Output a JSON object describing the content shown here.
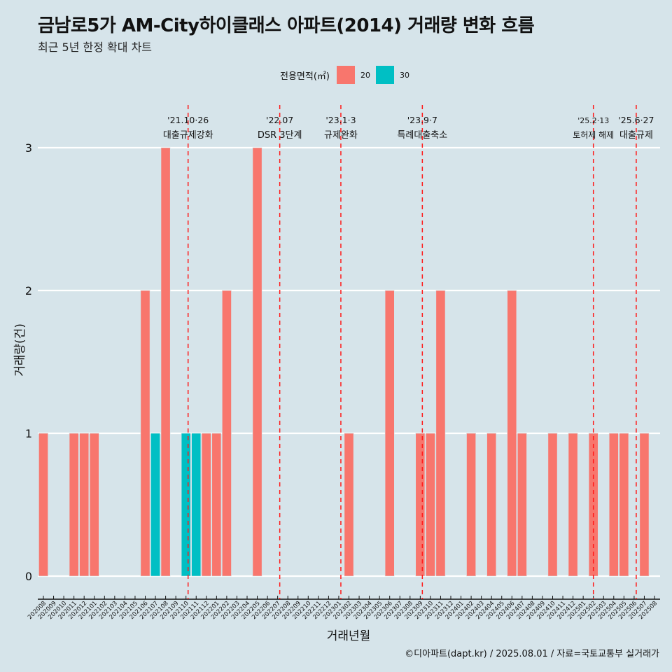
{
  "title": "금남로5가 AM-City하이클래스 아파트(2014) 거래량 변화 흐름",
  "subtitle": "최근 5년 한정 확대 차트",
  "caption": "©디아파트(dapt.kr) / 2025.08.01 / 자료=국토교통부 실거래가",
  "legend": {
    "title": "전용면적(㎡)",
    "items": [
      {
        "label": "20",
        "color": "#f8766d"
      },
      {
        "label": "30",
        "color": "#00bfc4"
      }
    ]
  },
  "chart_data": {
    "type": "bar",
    "stacked": true,
    "xlabel": "거래년월",
    "ylabel": "거래량(건)",
    "ylim": [
      0,
      3
    ],
    "yticks": [
      0,
      1,
      2,
      3
    ],
    "grid": true,
    "legend_position": "top",
    "categories": [
      "202008",
      "202009",
      "202010",
      "202011",
      "202012",
      "202101",
      "202102",
      "202103",
      "202104",
      "202105",
      "202106",
      "202107",
      "202108",
      "202109",
      "202110",
      "202111",
      "202112",
      "202201",
      "202202",
      "202203",
      "202204",
      "202205",
      "202206",
      "202207",
      "202208",
      "202209",
      "202210",
      "202211",
      "202212",
      "202301",
      "202302",
      "202303",
      "202304",
      "202305",
      "202306",
      "202307",
      "202308",
      "202309",
      "202310",
      "202311",
      "202312",
      "202401",
      "202402",
      "202403",
      "202404",
      "202405",
      "202406",
      "202407",
      "202408",
      "202409",
      "202410",
      "202411",
      "202412",
      "202501",
      "202502",
      "202503",
      "202504",
      "202505",
      "202506",
      "202507",
      "202508"
    ],
    "series": [
      {
        "name": "20",
        "color": "#f8766d",
        "values": [
          1,
          0,
          0,
          1,
          1,
          1,
          0,
          0,
          0,
          0,
          2,
          0,
          3,
          0,
          0,
          0,
          1,
          1,
          2,
          0,
          0,
          3,
          0,
          0,
          0,
          0,
          0,
          0,
          0,
          0,
          1,
          0,
          0,
          0,
          2,
          0,
          0,
          1,
          1,
          2,
          0,
          0,
          1,
          0,
          1,
          0,
          2,
          1,
          0,
          0,
          1,
          0,
          1,
          0,
          1,
          0,
          1,
          1,
          0,
          1,
          0
        ]
      },
      {
        "name": "30",
        "color": "#00bfc4",
        "values": [
          0,
          0,
          0,
          0,
          0,
          0,
          0,
          0,
          0,
          0,
          0,
          1,
          0,
          0,
          1,
          1,
          0,
          0,
          0,
          0,
          0,
          0,
          0,
          0,
          0,
          0,
          0,
          0,
          0,
          0,
          0,
          0,
          0,
          0,
          0,
          0,
          0,
          0,
          0,
          0,
          0,
          0,
          0,
          0,
          0,
          0,
          0,
          0,
          0,
          0,
          0,
          0,
          0,
          0,
          0,
          0,
          0,
          0,
          0,
          0,
          0
        ]
      }
    ],
    "annotations": [
      {
        "x": "202110",
        "line1": "'21.10·26",
        "line2": "대출규제강화"
      },
      {
        "x": "202207",
        "line1": "'22.07",
        "line2": "DSR 3단계"
      },
      {
        "x": "202301",
        "line1": "'23.1·3",
        "line2": "규제완화"
      },
      {
        "x": "202309",
        "line1": "'23.9·7",
        "line2": "특례대출축소"
      },
      {
        "x": "202502",
        "line1": "'25.2·13",
        "line2": "토허제 해제"
      },
      {
        "x": "202506",
        "line1": "'25.6·27",
        "line2": "대출규제"
      }
    ]
  }
}
